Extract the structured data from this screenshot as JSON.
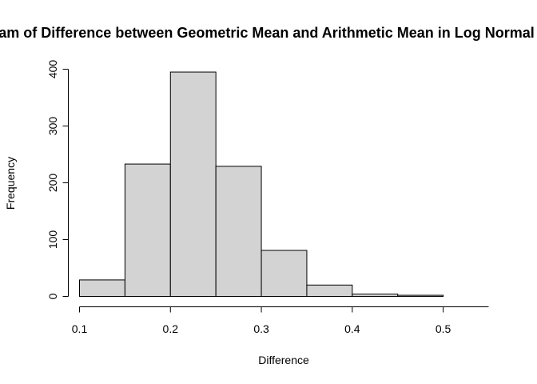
{
  "chart_data": {
    "type": "bar",
    "title": "Histogram of Difference between Geometric Mean and Arithmetic Mean in Log Normal Distribution",
    "xlabel": "Difference",
    "ylabel": "Frequency",
    "bins": [
      {
        "from": 0.1,
        "to": 0.15,
        "count": 29
      },
      {
        "from": 0.15,
        "to": 0.2,
        "count": 233
      },
      {
        "from": 0.2,
        "to": 0.25,
        "count": 395
      },
      {
        "from": 0.25,
        "to": 0.3,
        "count": 229
      },
      {
        "from": 0.3,
        "to": 0.35,
        "count": 81
      },
      {
        "from": 0.35,
        "to": 0.4,
        "count": 20
      },
      {
        "from": 0.4,
        "to": 0.45,
        "count": 4
      },
      {
        "from": 0.45,
        "to": 0.5,
        "count": 2
      },
      {
        "from": 0.5,
        "to": 0.55,
        "count": 0
      }
    ],
    "xlim": [
      0.1,
      0.55
    ],
    "ylim": [
      0,
      400
    ],
    "x_ticks": [
      "0.1",
      "0.2",
      "0.3",
      "0.4",
      "0.5"
    ],
    "y_ticks": [
      "0",
      "100",
      "200",
      "300",
      "400"
    ],
    "bar_color": "#D3D3D3",
    "border_color": "#000000",
    "grid": false,
    "legend": "none"
  }
}
